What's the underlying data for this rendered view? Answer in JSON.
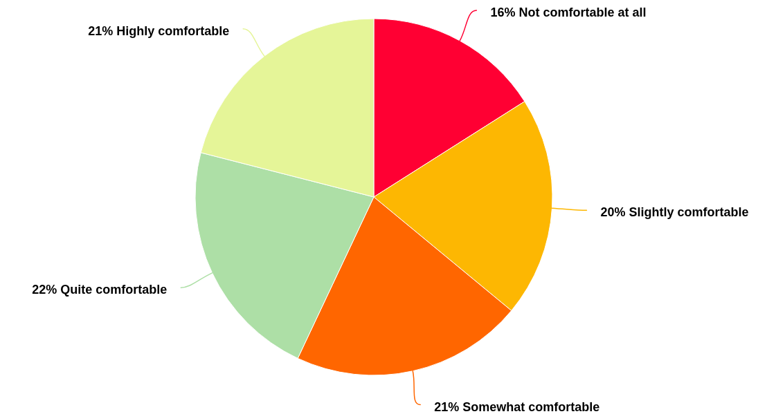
{
  "chart_data": {
    "type": "pie",
    "categories": [
      "Not comfortable at all",
      "Slightly comfortable",
      "Somewhat comfortable",
      "Quite comfortable",
      "Highly comfortable"
    ],
    "values": [
      16,
      20,
      21,
      22,
      21
    ],
    "value_labels": [
      "16%",
      "20%",
      "21%",
      "22%",
      "21%"
    ],
    "colors": [
      "#ff0033",
      "#fdb702",
      "#ff6600",
      "#addfa6",
      "#e5f598"
    ]
  }
}
